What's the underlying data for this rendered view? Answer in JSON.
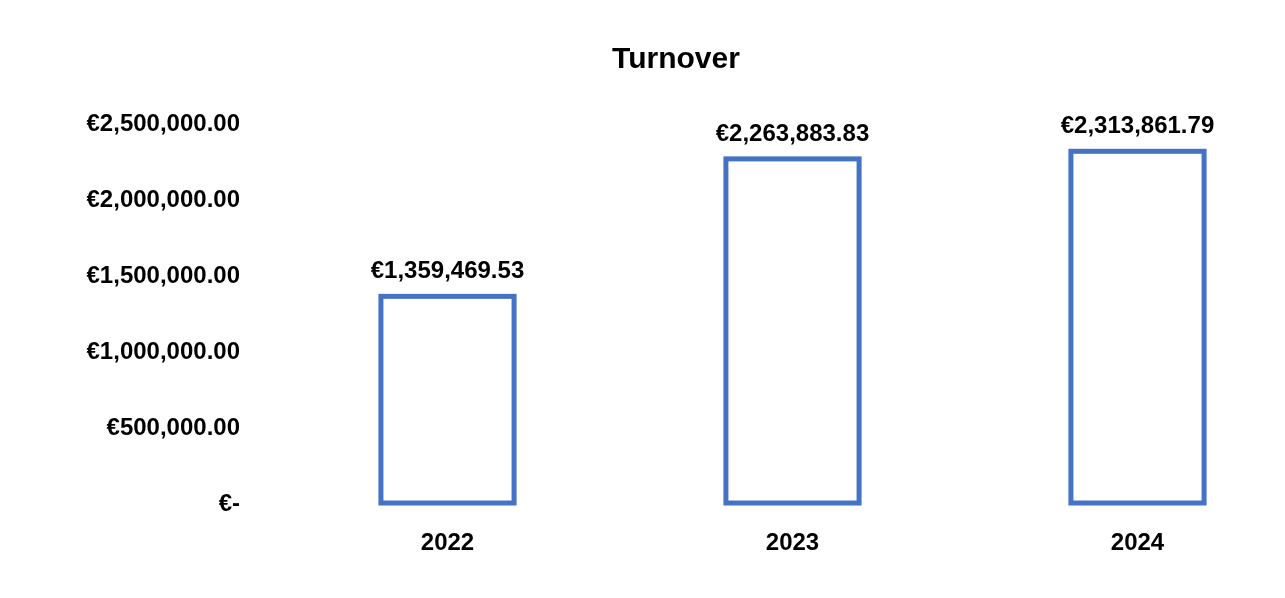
{
  "chart_data": {
    "type": "bar",
    "title": "Turnover",
    "categories": [
      "2022",
      "2023",
      "2024"
    ],
    "values": [
      1359469.53,
      2263883.83,
      2313861.79
    ],
    "value_labels": [
      "€1,359,469.53",
      "€2,263,883.83",
      "€2,313,861.79"
    ],
    "color": "#4472c4",
    "ylim": [
      0,
      2500000
    ],
    "yticks": [
      {
        "value": 0,
        "label": "€-"
      },
      {
        "value": 500000,
        "label": "€500,000.00"
      },
      {
        "value": 1000000,
        "label": "€1,000,000.00"
      },
      {
        "value": 1500000,
        "label": "€1,500,000.00"
      },
      {
        "value": 2000000,
        "label": "€2,000,000.00"
      },
      {
        "value": 2500000,
        "label": "€2,500,000.00"
      }
    ],
    "grid": false
  }
}
